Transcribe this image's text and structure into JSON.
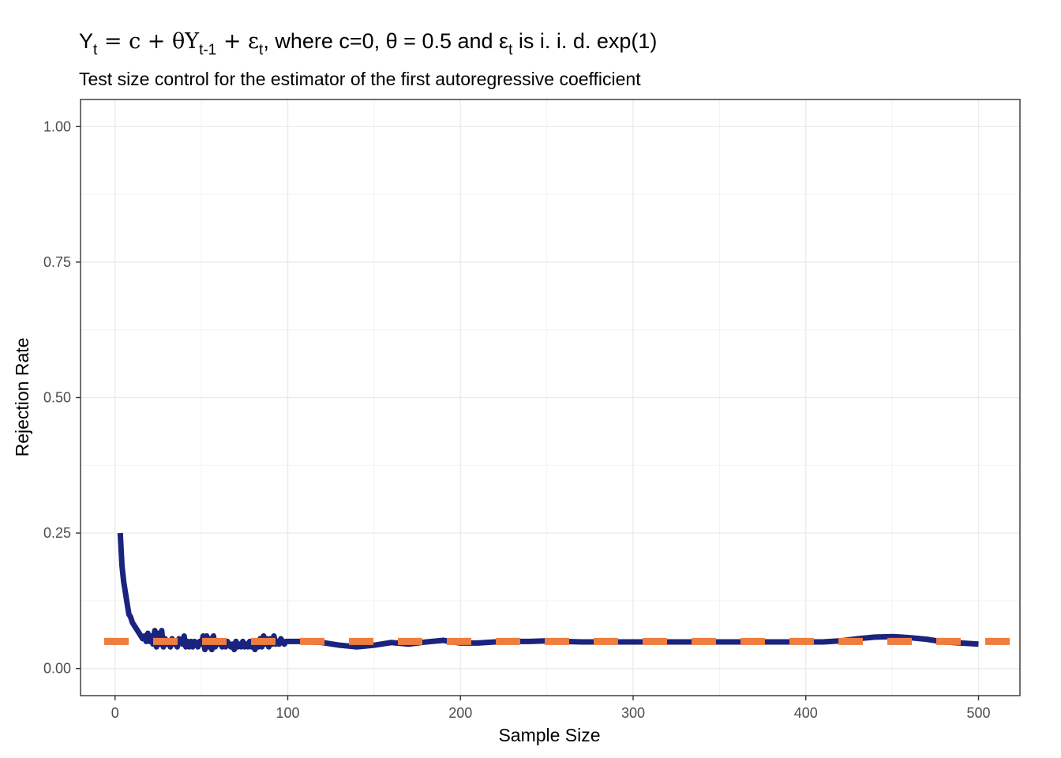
{
  "title": {
    "y": "Y",
    "t": "t",
    "eq": " = c + θY",
    "tm1": "t-1",
    "plus_eps": " + ε",
    "rest": ", where c=0, θ = 0.5 and ε",
    "tail": " is i. i. d. exp(1)"
  },
  "subtitle": "Test size control for the estimator of the first autoregressive coefficient",
  "colors": {
    "line": "#1a237e",
    "reference": "#ef7d3f",
    "grid_major": "#ebebeb",
    "grid_minor": "#f3f3f3",
    "panel_border": "#333333"
  },
  "chart_data": {
    "type": "line",
    "title": "Y_t = c + θY_t-1 + ε_t, where c=0, θ = 0.5 and ε_t is i. i. d. exp(1)",
    "subtitle": "Test size control for the estimator of the first autoregressive coefficient",
    "xlabel": "Sample Size",
    "ylabel": "Rejection Rate",
    "xlim": [
      -20,
      524
    ],
    "ylim": [
      -0.05,
      1.05
    ],
    "x_ticks": [
      "0",
      "100",
      "200",
      "300",
      "400",
      "500"
    ],
    "y_ticks": [
      "0.00",
      "0.25",
      "0.50",
      "0.75",
      "1.00"
    ],
    "grid": true,
    "legend": "none",
    "series": [
      {
        "x": [
          3,
          4,
          5,
          6,
          7,
          8,
          9,
          10,
          11,
          12,
          13,
          14,
          15,
          16,
          17,
          18,
          19,
          20,
          21,
          22,
          23,
          24,
          25,
          26,
          27,
          28,
          29,
          30,
          31,
          32,
          33,
          34,
          35,
          36,
          37,
          38,
          39,
          40,
          41,
          42,
          43,
          44,
          45,
          46,
          47,
          48,
          49,
          50,
          51,
          52,
          53,
          54,
          55,
          56,
          57,
          58,
          59,
          60,
          61,
          62,
          63,
          64,
          65,
          66,
          67,
          68,
          69,
          70,
          71,
          72,
          73,
          74,
          75,
          76,
          77,
          78,
          79,
          80,
          81,
          82,
          83,
          84,
          85,
          86,
          87,
          88,
          89,
          90,
          91,
          92,
          93,
          94,
          95,
          96,
          97,
          98,
          99,
          100,
          110,
          120,
          130,
          140,
          150,
          160,
          170,
          180,
          190,
          200,
          210,
          220,
          230,
          240,
          250,
          260,
          270,
          280,
          290,
          300,
          310,
          320,
          330,
          340,
          350,
          360,
          370,
          380,
          390,
          400,
          410,
          420,
          430,
          440,
          450,
          460,
          470,
          480,
          490,
          500
        ],
        "y": [
          0.25,
          0.19,
          0.16,
          0.14,
          0.12,
          0.1,
          0.095,
          0.085,
          0.08,
          0.075,
          0.07,
          0.065,
          0.06,
          0.055,
          0.06,
          0.05,
          0.065,
          0.05,
          0.06,
          0.045,
          0.07,
          0.04,
          0.065,
          0.045,
          0.07,
          0.04,
          0.055,
          0.045,
          0.05,
          0.04,
          0.055,
          0.045,
          0.05,
          0.04,
          0.055,
          0.05,
          0.045,
          0.06,
          0.04,
          0.05,
          0.04,
          0.05,
          0.04,
          0.05,
          0.045,
          0.04,
          0.05,
          0.045,
          0.06,
          0.035,
          0.06,
          0.04,
          0.055,
          0.035,
          0.06,
          0.04,
          0.05,
          0.045,
          0.05,
          0.04,
          0.045,
          0.04,
          0.05,
          0.045,
          0.04,
          0.045,
          0.035,
          0.05,
          0.04,
          0.045,
          0.04,
          0.05,
          0.04,
          0.045,
          0.04,
          0.05,
          0.04,
          0.045,
          0.035,
          0.05,
          0.04,
          0.055,
          0.04,
          0.06,
          0.045,
          0.055,
          0.04,
          0.055,
          0.045,
          0.06,
          0.045,
          0.05,
          0.045,
          0.055,
          0.05,
          0.045,
          0.05,
          0.05,
          0.05,
          0.048,
          0.043,
          0.04,
          0.043,
          0.048,
          0.045,
          0.049,
          0.052,
          0.047,
          0.047,
          0.049,
          0.05,
          0.05,
          0.051,
          0.05,
          0.049,
          0.049,
          0.049,
          0.049,
          0.049,
          0.049,
          0.049,
          0.049,
          0.049,
          0.049,
          0.049,
          0.049,
          0.049,
          0.049,
          0.049,
          0.051,
          0.055,
          0.058,
          0.059,
          0.057,
          0.054,
          0.049,
          0.047,
          0.045
        ]
      },
      {
        "type": "hline",
        "y": [
          0.05
        ]
      }
    ]
  }
}
